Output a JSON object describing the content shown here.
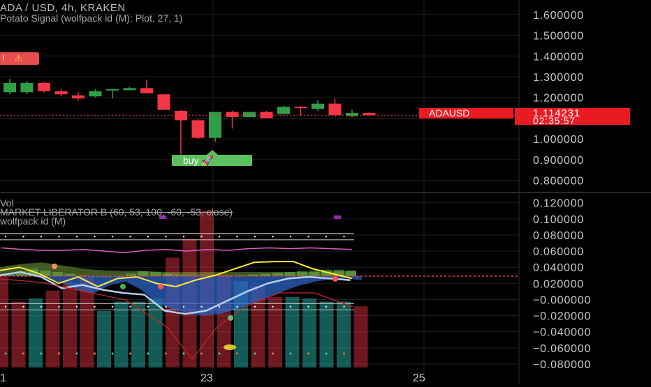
{
  "header": {
    "title": "ADA / USD, 4h, KRAKEN",
    "indicator": "Potato Signal (wolfpack id (M): Plot, 27, 1)",
    "vol": "Vol",
    "market_liberator": "MARKET LIBERATOR B (60, 53, 100, -60, -53, close)",
    "wolfpack": "wolfpack id (M)"
  },
  "current_price": {
    "symbol": "ADAUSD",
    "value": "1.114231",
    "countdown": "02:35:57"
  },
  "labels": {
    "buy": "buy 🚀",
    "warning": "!"
  },
  "colors": {
    "bull": "#26a69a",
    "bull_candle": "#2e9e47",
    "bear": "#f23645",
    "price_line": "#f23645",
    "wave_fill": "#2b63c4",
    "yellow": "#ffeb3b",
    "magenta": "#e040b0",
    "grid": "#1e1e1e"
  },
  "chart_data": [
    {
      "type": "candlestick",
      "title": "ADA / USD, 4h, KRAKEN",
      "xlabel": "",
      "ylabel": "",
      "x_ticks": [
        "1",
        "23",
        "25"
      ],
      "y_ticks": [
        "1.600000",
        "1.500000",
        "1.400000",
        "1.300000",
        "1.200000",
        "1.100000",
        "1.000000",
        "0.900000",
        "0.800000"
      ],
      "ylim": [
        0.745,
        1.67
      ],
      "grid": true,
      "candles": [
        {
          "o": 1.225,
          "h": 1.29,
          "l": 1.215,
          "c": 1.27,
          "dir": "up"
        },
        {
          "o": 1.225,
          "h": 1.28,
          "l": 1.215,
          "c": 1.27,
          "dir": "up"
        },
        {
          "o": 1.27,
          "h": 1.275,
          "l": 1.225,
          "c": 1.23,
          "dir": "down"
        },
        {
          "o": 1.23,
          "h": 1.24,
          "l": 1.205,
          "c": 1.215,
          "dir": "down"
        },
        {
          "o": 1.21,
          "h": 1.225,
          "l": 1.185,
          "c": 1.195,
          "dir": "down"
        },
        {
          "o": 1.205,
          "h": 1.24,
          "l": 1.2,
          "c": 1.23,
          "dir": "up"
        },
        {
          "o": 1.235,
          "h": 1.24,
          "l": 1.195,
          "c": 1.24,
          "dir": "up"
        },
        {
          "o": 1.235,
          "h": 1.25,
          "l": 1.235,
          "c": 1.245,
          "dir": "up"
        },
        {
          "o": 1.245,
          "h": 1.285,
          "l": 1.22,
          "c": 1.22,
          "dir": "down"
        },
        {
          "o": 1.215,
          "h": 1.215,
          "l": 1.14,
          "c": 1.14,
          "dir": "down"
        },
        {
          "o": 1.135,
          "h": 1.14,
          "l": 0.925,
          "c": 1.09,
          "dir": "down"
        },
        {
          "o": 1.09,
          "h": 1.095,
          "l": 1.0,
          "c": 1.005,
          "dir": "down"
        },
        {
          "o": 1.005,
          "h": 1.13,
          "l": 0.985,
          "c": 1.13,
          "dir": "up"
        },
        {
          "o": 1.13,
          "h": 1.135,
          "l": 1.05,
          "c": 1.105,
          "dir": "down"
        },
        {
          "o": 1.105,
          "h": 1.13,
          "l": 1.105,
          "c": 1.13,
          "dir": "up"
        },
        {
          "o": 1.13,
          "h": 1.135,
          "l": 1.1,
          "c": 1.1,
          "dir": "down"
        },
        {
          "o": 1.12,
          "h": 1.16,
          "l": 1.12,
          "c": 1.155,
          "dir": "up"
        },
        {
          "o": 1.155,
          "h": 1.16,
          "l": 1.11,
          "c": 1.15,
          "dir": "down"
        },
        {
          "o": 1.145,
          "h": 1.185,
          "l": 1.135,
          "c": 1.17,
          "dir": "up"
        },
        {
          "o": 1.17,
          "h": 1.195,
          "l": 1.11,
          "c": 1.115,
          "dir": "down"
        },
        {
          "o": 1.11,
          "h": 1.14,
          "l": 1.105,
          "c": 1.125,
          "dir": "up"
        },
        {
          "o": 1.125,
          "h": 1.13,
          "l": 1.11,
          "c": 1.114231,
          "dir": "down"
        }
      ]
    },
    {
      "type": "oscillator",
      "title": "MARKET LIBERATOR B (60, 53, 100, -60, -53, close)",
      "y_ticks": [
        "0.120000",
        "0.100000",
        "0.080000",
        "0.060000",
        "0.040000",
        "0.020000",
        "−0.000000",
        "−0.020000",
        "−0.040000",
        "−0.060000",
        "−0.080000"
      ],
      "ylim": [
        -0.093,
        0.131
      ],
      "volume": [
        0.58,
        0.42,
        0.44,
        0.49,
        0.54,
        0.58,
        0.36,
        0.42,
        0.42,
        0.44,
        0.7,
        0.82,
        1.0,
        0.59,
        0.55,
        0.52,
        0.45,
        0.45,
        0.44,
        0.42,
        0.42,
        0.39,
        0.37,
        0.39,
        0.35,
        0.35,
        0.38,
        0.37,
        0.35,
        0.34,
        0.39,
        0.38,
        0.34
      ],
      "volume_dir": [
        "down",
        "down",
        "up",
        "down",
        "down",
        "down",
        "up",
        "up",
        "up",
        "up",
        "down",
        "down",
        "down",
        "down",
        "up",
        "down",
        "down",
        "up",
        "up",
        "up",
        "up",
        "down",
        "up",
        "down",
        "up",
        "up",
        "down",
        "up",
        "down",
        "up",
        "down",
        "down",
        "up"
      ],
      "histogram": [
        0.031,
        0.035,
        0.038,
        0.036,
        0.034,
        0.032,
        0.03,
        0.028,
        0.027,
        0.028,
        0.032,
        0.035,
        0.034,
        0.032,
        0.031,
        0.03,
        0.03,
        0.029,
        0.029,
        0.03,
        0.031,
        0.032,
        0.033,
        0.034,
        0.035,
        0.036,
        0.037,
        0.037,
        0.036
      ],
      "wave": [
        0.03,
        0.03,
        0.029,
        0.026,
        0.02,
        0.012,
        0.008,
        0.018,
        0.022,
        0.012,
        -0.005,
        -0.012,
        -0.018,
        -0.02,
        -0.018,
        -0.012,
        -0.005,
        0.002,
        0.01,
        0.017,
        0.022,
        0.025,
        0.026,
        0.024
      ],
      "yellow_line": [
        0.036,
        0.04,
        0.032,
        0.02,
        0.028,
        0.016,
        0.026,
        0.028,
        0.02,
        0.016,
        0.024,
        0.03,
        0.038,
        0.046,
        0.047,
        0.047,
        0.038,
        0.032,
        0.026
      ],
      "light_line": [
        0.03,
        0.034,
        0.028,
        0.014,
        0.018,
        0.012,
        0.008,
        0.006,
        -0.014,
        -0.018,
        -0.014,
        -0.002,
        0.01,
        0.02,
        0.026,
        0.028,
        0.026,
        0.024
      ],
      "magenta_line": [
        0.064,
        0.062,
        0.061,
        0.061,
        0.062,
        0.06,
        0.058,
        0.061,
        0.062,
        0.06,
        0.062,
        0.061,
        0.063,
        0.064,
        0.063,
        0.064,
        0.063,
        0.062
      ],
      "green_band_top": [
        0.04,
        0.044,
        0.046,
        0.042,
        0.038,
        0.036,
        0.035,
        0.035,
        0.034,
        0.034,
        0.034,
        0.034,
        0.034,
        0.034,
        0.034,
        0.034,
        0.035,
        0.035
      ],
      "red_dashed_level": 0.029,
      "overbought_lines": [
        0.082,
        0.074
      ],
      "oversold_lines": [
        -0.005,
        -0.013
      ]
    }
  ]
}
